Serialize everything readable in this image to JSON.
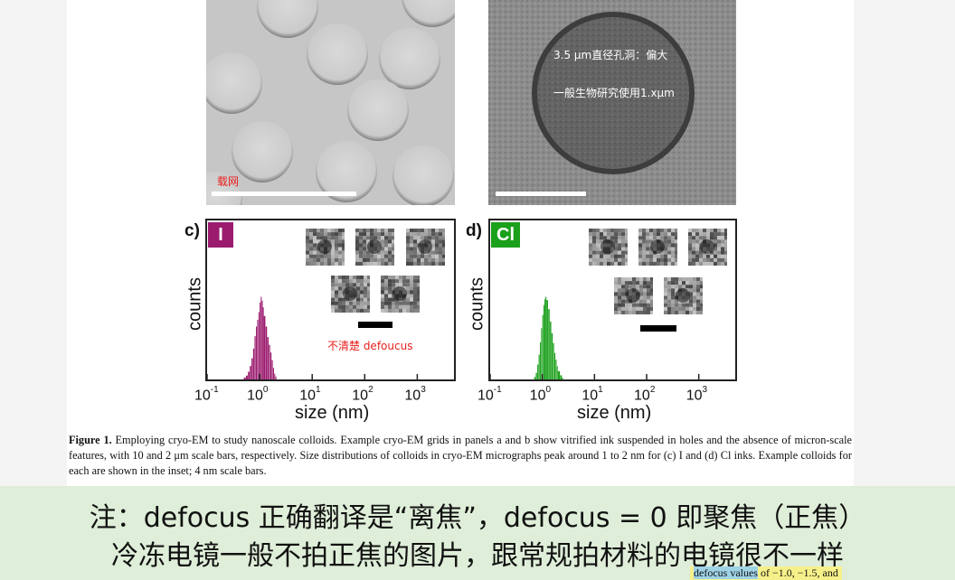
{
  "panel_a": {
    "annotation": "载网"
  },
  "panel_b": {
    "annotation_line1": "3.5 µm直径孔洞：偏大",
    "annotation_line2": "一般生物研究使用1.xµm"
  },
  "panel_c": {
    "letter": "c)",
    "badge": "I",
    "badge_color": "#9b1b6f",
    "note": "不清楚 defoucus"
  },
  "panel_d": {
    "letter": "d)",
    "badge": "Cl",
    "badge_color": "#1aa01a"
  },
  "axes": {
    "ylabel": "counts",
    "xlabel": "size (nm)",
    "xticks": [
      {
        "base": "10",
        "exp": "-1"
      },
      {
        "base": "10",
        "exp": "0"
      },
      {
        "base": "10",
        "exp": "1"
      },
      {
        "base": "10",
        "exp": "2"
      },
      {
        "base": "10",
        "exp": "3"
      }
    ]
  },
  "caption": {
    "label": "Figure 1.",
    "text": " Employing cryo-EM to study nanoscale colloids. Example cryo-EM grids in panels a and b show vitrified ink suspended in holes and the absence of micron-scale features, with 10 and 2 μm scale bars, respectively. Size distributions of colloids in cryo-EM micrographs peak around 1 to 2 nm for (c) I and (d) Cl inks. Example colloids for each are shown in the inset; 4 nm scale bars."
  },
  "banner": {
    "line1": "注：defocus 正确翻译是“离焦”，defocus = 0 即聚焦（正焦）",
    "line2": "冷冻电镜一般不拍正焦的图片，跟常规拍材料的电镜很不一样"
  },
  "snippet": {
    "highlight": "defocus values",
    "rest": " of −1.0, −1.5, and"
  },
  "chart_data": [
    {
      "type": "bar",
      "panel": "c",
      "series": [
        {
          "name": "I",
          "color": "#9b1b6f"
        }
      ],
      "x": [
        0.5,
        0.55,
        0.6,
        0.65,
        0.7,
        0.75,
        0.8,
        0.85,
        0.9,
        0.95,
        1.0,
        1.05,
        1.1,
        1.15,
        1.2,
        1.3,
        1.4,
        1.5,
        1.6,
        1.7,
        1.8,
        1.9,
        2.0
      ],
      "values": [
        2,
        4,
        8,
        14,
        22,
        32,
        45,
        55,
        62,
        70,
        80,
        86,
        82,
        75,
        66,
        55,
        44,
        36,
        28,
        20,
        12,
        6,
        3
      ],
      "xlabel": "size (nm)",
      "ylabel": "counts",
      "xscale": "log",
      "xlim": [
        0.1,
        5000
      ]
    },
    {
      "type": "bar",
      "panel": "d",
      "series": [
        {
          "name": "Cl",
          "color": "#1aa01a"
        }
      ],
      "x": [
        0.7,
        0.75,
        0.8,
        0.85,
        0.9,
        0.95,
        1.0,
        1.05,
        1.1,
        1.15,
        1.2,
        1.3,
        1.4,
        1.5,
        1.6,
        1.7,
        1.8,
        1.9,
        2.0,
        2.2,
        2.4
      ],
      "values": [
        3,
        8,
        18,
        30,
        45,
        62,
        78,
        90,
        97,
        100,
        96,
        85,
        70,
        56,
        44,
        32,
        24,
        16,
        10,
        5,
        2
      ],
      "xlabel": "size (nm)",
      "ylabel": "counts",
      "xscale": "log",
      "xlim": [
        0.1,
        5000
      ]
    }
  ]
}
